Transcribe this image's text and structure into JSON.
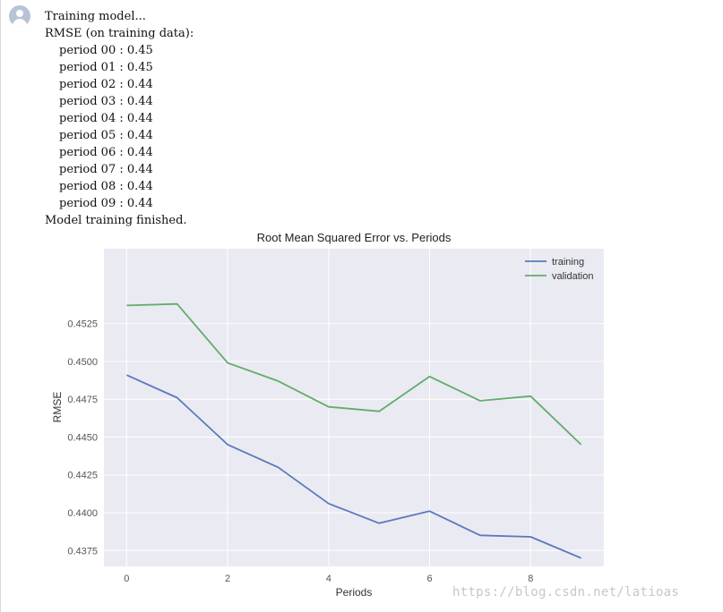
{
  "output": {
    "training_line": "Training model...",
    "rmse_header": "RMSE (on training data):",
    "periods": [
      "period 00 : 0.45",
      "period 01 : 0.45",
      "period 02 : 0.44",
      "period 03 : 0.44",
      "period 04 : 0.44",
      "period 05 : 0.44",
      "period 06 : 0.44",
      "period 07 : 0.44",
      "period 08 : 0.44",
      "period 09 : 0.44"
    ],
    "finished_line": "Model training finished."
  },
  "chart_data": {
    "type": "line",
    "title": "Root Mean Squared Error vs. Periods",
    "xlabel": "Periods",
    "ylabel": "RMSE",
    "x": [
      0,
      1,
      2,
      3,
      4,
      5,
      6,
      7,
      8,
      9
    ],
    "xlim": [
      -0.45,
      9.45
    ],
    "ylim": [
      0.43645,
      0.45745
    ],
    "xticks": [
      0,
      2,
      4,
      6,
      8
    ],
    "yticks": [
      0.4375,
      0.44,
      0.4425,
      0.445,
      0.4475,
      0.45,
      0.4525
    ],
    "ytick_labels": [
      "0.4375",
      "0.4400",
      "0.4425",
      "0.4450",
      "0.4475",
      "0.4500",
      "0.4525"
    ],
    "grid": true,
    "legend": "top-right",
    "series": [
      {
        "name": "training",
        "color": "#5a79bd",
        "values": [
          0.4491,
          0.4476,
          0.4445,
          0.443,
          0.4406,
          0.4393,
          0.4401,
          0.4385,
          0.4384,
          0.437
        ]
      },
      {
        "name": "validation",
        "color": "#61ad6b",
        "values": [
          0.4537,
          0.4538,
          0.4499,
          0.4487,
          0.447,
          0.4467,
          0.449,
          0.4474,
          0.4477,
          0.4445
        ]
      }
    ]
  },
  "watermark": "https://blog.csdn.net/latioas"
}
